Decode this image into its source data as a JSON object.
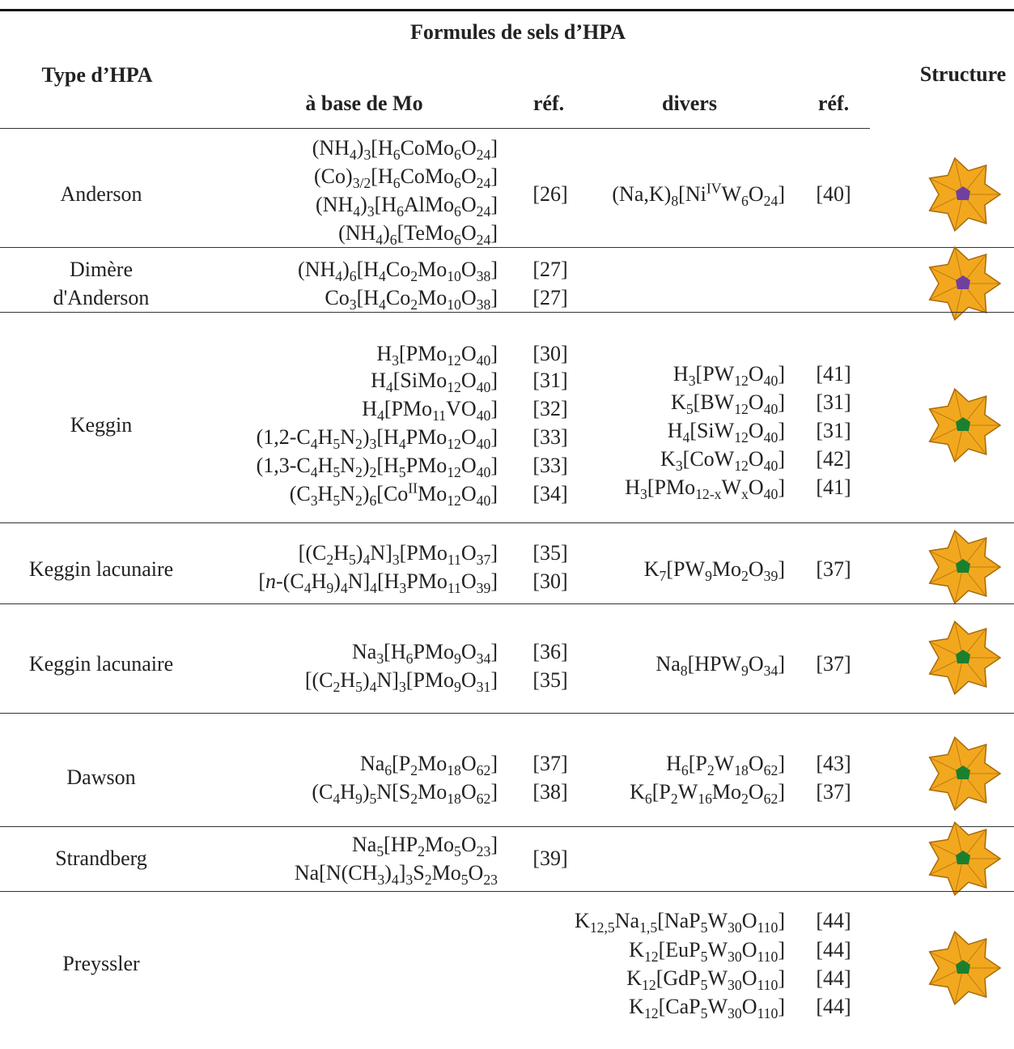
{
  "header": {
    "group": "Formules de sels d’HPA",
    "type": "Type d’HPA",
    "structure": "Structure",
    "mo": "à base de Mo",
    "mo_ref": "réf.",
    "divers": "divers",
    "divers_ref": "réf."
  },
  "rows": [
    {
      "type": [
        "Anderson"
      ],
      "mo": [
        [
          "(NH",
          {
            "sub": "4"
          },
          ")",
          {
            "sub": "3"
          },
          "[H",
          {
            "sub": "6"
          },
          "CoMo",
          {
            "sub": "6"
          },
          "O",
          {
            "sub": "24"
          },
          "]"
        ],
        [
          "(Co)",
          {
            "sub": "3/2"
          },
          "[H",
          {
            "sub": "6"
          },
          "CoMo",
          {
            "sub": "6"
          },
          "O",
          {
            "sub": "24"
          },
          "]"
        ],
        [
          "(NH",
          {
            "sub": "4"
          },
          ")",
          {
            "sub": "3"
          },
          "[H",
          {
            "sub": "6"
          },
          "AlMo",
          {
            "sub": "6"
          },
          "O",
          {
            "sub": "24"
          },
          "]"
        ],
        [
          "(NH",
          {
            "sub": "4"
          },
          ")",
          {
            "sub": "6"
          },
          "[TeMo",
          {
            "sub": "6"
          },
          "O",
          {
            "sub": "24"
          },
          "]"
        ]
      ],
      "mo_refs": [
        "[26]"
      ],
      "divers": [
        [
          "(Na,K)",
          {
            "sub": "8"
          },
          "[Ni",
          {
            "sup": "IV"
          },
          "W",
          {
            "sub": "6"
          },
          "O",
          {
            "sub": "24"
          },
          "]"
        ]
      ],
      "divers_refs": [
        "[40]"
      ]
    },
    {
      "type": [
        "Dimère",
        "d'Anderson"
      ],
      "mo": [
        [
          "(NH",
          {
            "sub": "4"
          },
          ")",
          {
            "sub": "6"
          },
          "[H",
          {
            "sub": "4"
          },
          "Co",
          {
            "sub": "2"
          },
          "Mo",
          {
            "sub": "10"
          },
          "O",
          {
            "sub": "38"
          },
          "]"
        ],
        [
          "Co",
          {
            "sub": "3"
          },
          "[H",
          {
            "sub": "4"
          },
          "Co",
          {
            "sub": "2"
          },
          "Mo",
          {
            "sub": "10"
          },
          "O",
          {
            "sub": "38"
          },
          "]"
        ]
      ],
      "mo_refs": [
        "[27]",
        "[27]"
      ],
      "divers": [],
      "divers_refs": []
    },
    {
      "type": [
        "Keggin"
      ],
      "mo": [
        [
          "H",
          {
            "sub": "3"
          },
          "[PMo",
          {
            "sub": "12"
          },
          "O",
          {
            "sub": "40"
          },
          "]"
        ],
        [
          "H",
          {
            "sub": "4"
          },
          "[SiMo",
          {
            "sub": "12"
          },
          "O",
          {
            "sub": "40"
          },
          "]"
        ],
        [
          "H",
          {
            "sub": "4"
          },
          "[PMo",
          {
            "sub": "11"
          },
          "VO",
          {
            "sub": "40"
          },
          "]"
        ],
        [
          "(1,2-C",
          {
            "sub": "4"
          },
          "H",
          {
            "sub": "5"
          },
          "N",
          {
            "sub": "2"
          },
          ")",
          {
            "sub": "3"
          },
          "[H",
          {
            "sub": "4"
          },
          "PMo",
          {
            "sub": "12"
          },
          "O",
          {
            "sub": "40"
          },
          "]"
        ],
        [
          "(1,3-C",
          {
            "sub": "4"
          },
          "H",
          {
            "sub": "5"
          },
          "N",
          {
            "sub": "2"
          },
          ")",
          {
            "sub": "2"
          },
          "[H",
          {
            "sub": "5"
          },
          "PMo",
          {
            "sub": "12"
          },
          "O",
          {
            "sub": "40"
          },
          "]"
        ],
        [
          "(C",
          {
            "sub": "3"
          },
          "H",
          {
            "sub": "5"
          },
          "N",
          {
            "sub": "2"
          },
          ")",
          {
            "sub": "6"
          },
          "[Co",
          {
            "sup": "II"
          },
          "Mo",
          {
            "sub": "12"
          },
          "O",
          {
            "sub": "40"
          },
          "]"
        ]
      ],
      "mo_refs": [
        "[30]",
        "[31]",
        "[32]",
        "[33]",
        "[33]",
        "[34]"
      ],
      "divers": [
        [
          "H",
          {
            "sub": "3"
          },
          "[PW",
          {
            "sub": "12"
          },
          "O",
          {
            "sub": "40"
          },
          "]"
        ],
        [
          "K",
          {
            "sub": "5"
          },
          "[BW",
          {
            "sub": "12"
          },
          "O",
          {
            "sub": "40"
          },
          "]"
        ],
        [
          "H",
          {
            "sub": "4"
          },
          "[SiW",
          {
            "sub": "12"
          },
          "O",
          {
            "sub": "40"
          },
          "]"
        ],
        [
          "K",
          {
            "sub": "3"
          },
          "[CoW",
          {
            "sub": "12"
          },
          "O",
          {
            "sub": "40"
          },
          "]"
        ],
        [
          "H",
          {
            "sub": "3"
          },
          "[PMo",
          {
            "sub": "12-x"
          },
          "W",
          {
            "sub": "x"
          },
          "O",
          {
            "sub": "40"
          },
          "]"
        ]
      ],
      "divers_refs": [
        "[41]",
        "[31]",
        "[31]",
        "[42]",
        "[41]"
      ]
    },
    {
      "type": [
        "Keggin lacunaire"
      ],
      "mo": [
        [
          "[(C",
          {
            "sub": "2"
          },
          "H",
          {
            "sub": "5"
          },
          ")",
          {
            "sub": "4"
          },
          "N]",
          {
            "sub": "3"
          },
          "[PMo",
          {
            "sub": "11"
          },
          "O",
          {
            "sub": "37"
          },
          "]"
        ],
        [
          "[",
          {
            "i": "n"
          },
          "-(C",
          {
            "sub": "4"
          },
          "H",
          {
            "sub": "9"
          },
          ")",
          {
            "sub": "4"
          },
          "N]",
          {
            "sub": "4"
          },
          "[H",
          {
            "sub": "3"
          },
          "PMo",
          {
            "sub": "11"
          },
          "O",
          {
            "sub": "39"
          },
          "]"
        ]
      ],
      "mo_refs": [
        "[35]",
        "[30]"
      ],
      "divers": [
        [
          "K",
          {
            "sub": "7"
          },
          "[PW",
          {
            "sub": "9"
          },
          "Mo",
          {
            "sub": "2"
          },
          "O",
          {
            "sub": "39"
          },
          "]"
        ]
      ],
      "divers_refs": [
        "[37]"
      ]
    },
    {
      "type": [
        "Keggin lacunaire"
      ],
      "mo": [
        [
          "Na",
          {
            "sub": "3"
          },
          "[H",
          {
            "sub": "6"
          },
          "PMo",
          {
            "sub": "9"
          },
          "O",
          {
            "sub": "34"
          },
          "]"
        ],
        [
          "[(C",
          {
            "sub": "2"
          },
          "H",
          {
            "sub": "5"
          },
          ")",
          {
            "sub": "4"
          },
          "N]",
          {
            "sub": "3"
          },
          "[PMo",
          {
            "sub": "9"
          },
          "O",
          {
            "sub": "31"
          },
          "]"
        ]
      ],
      "mo_refs": [
        "[36]",
        "[35]"
      ],
      "divers": [
        [
          "Na",
          {
            "sub": "8"
          },
          "[HPW",
          {
            "sub": "9"
          },
          "O",
          {
            "sub": "34"
          },
          "]"
        ]
      ],
      "divers_refs": [
        "[37]"
      ]
    },
    {
      "type": [
        "Dawson"
      ],
      "mo": [
        [
          "Na",
          {
            "sub": "6"
          },
          "[P",
          {
            "sub": "2"
          },
          "Mo",
          {
            "sub": "18"
          },
          "O",
          {
            "sub": "62"
          },
          "]"
        ],
        [
          "(C",
          {
            "sub": "4"
          },
          "H",
          {
            "sub": "9"
          },
          ")",
          {
            "sub": "5"
          },
          "N[S",
          {
            "sub": "2"
          },
          "Mo",
          {
            "sub": "18"
          },
          "O",
          {
            "sub": "62"
          },
          "]"
        ]
      ],
      "mo_refs": [
        "[37]",
        "[38]"
      ],
      "divers": [
        [
          "H",
          {
            "sub": "6"
          },
          "[P",
          {
            "sub": "2"
          },
          "W",
          {
            "sub": "18"
          },
          "O",
          {
            "sub": "62"
          },
          "]"
        ],
        [
          "K",
          {
            "sub": "6"
          },
          "[P",
          {
            "sub": "2"
          },
          "W",
          {
            "sub": "16"
          },
          "Mo",
          {
            "sub": "2"
          },
          "O",
          {
            "sub": "62"
          },
          "]"
        ]
      ],
      "divers_refs": [
        "[43]",
        "[37]"
      ]
    },
    {
      "type": [
        "Strandberg"
      ],
      "mo": [
        [
          "Na",
          {
            "sub": "5"
          },
          "[HP",
          {
            "sub": "2"
          },
          "Mo",
          {
            "sub": "5"
          },
          "O",
          {
            "sub": "23"
          },
          "]"
        ],
        [
          "Na[N(CH",
          {
            "sub": "3"
          },
          ")",
          {
            "sub": "4"
          },
          "]",
          {
            "sub": "3"
          },
          "S",
          {
            "sub": "2"
          },
          "Mo",
          {
            "sub": "5"
          },
          "O",
          {
            "sub": "23"
          }
        ]
      ],
      "mo_refs": [
        "[39]"
      ],
      "divers": [],
      "divers_refs": []
    },
    {
      "type": [
        "Preyssler"
      ],
      "mo": [],
      "mo_refs": [],
      "divers": [
        [
          "K",
          {
            "sub": "12,5"
          },
          "Na",
          {
            "sub": "1,5"
          },
          "[NaP",
          {
            "sub": "5"
          },
          "W",
          {
            "sub": "30"
          },
          "O",
          {
            "sub": "110"
          },
          "]"
        ],
        [
          "K",
          {
            "sub": "12"
          },
          "[EuP",
          {
            "sub": "5"
          },
          "W",
          {
            "sub": "30"
          },
          "O",
          {
            "sub": "110"
          },
          "]"
        ],
        [
          "K",
          {
            "sub": "12"
          },
          "[GdP",
          {
            "sub": "5"
          },
          "W",
          {
            "sub": "30"
          },
          "O",
          {
            "sub": "110"
          },
          "]"
        ],
        [
          "K",
          {
            "sub": "12"
          },
          "[CaP",
          {
            "sub": "5"
          },
          "W",
          {
            "sub": "30"
          },
          "O",
          {
            "sub": "110"
          },
          "]"
        ]
      ],
      "divers_refs": [
        "[44]",
        "[44]",
        "[44]",
        "[44]"
      ]
    }
  ]
}
